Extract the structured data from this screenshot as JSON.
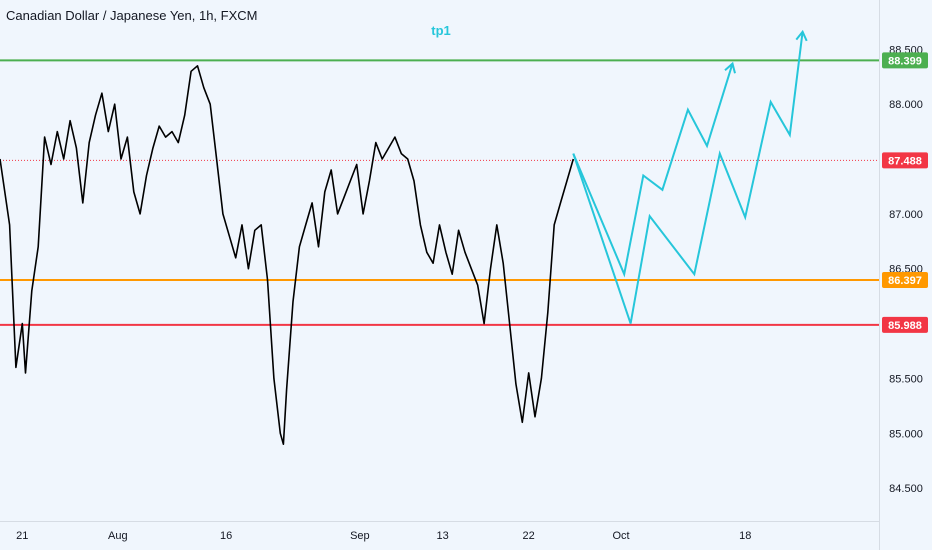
{
  "chart_title": "Canadian Dollar / Japanese Yen, 1h, FXCM",
  "annotation": {
    "text": "tp1",
    "color": "#26c6da"
  },
  "colors": {
    "background": "#f0f6fd",
    "candles": "#000000",
    "projection": "#26c6da",
    "resistance": "#4caf50",
    "support_upper": "#ff9800",
    "support_lower": "#f23645",
    "current_price": "#f23645"
  },
  "chart_data": {
    "type": "line",
    "title": "Canadian Dollar / Japanese Yen, 1h, FXCM",
    "symbol": "CADJPY",
    "interval": "1h",
    "source": "FXCM",
    "ylim": [
      84.2,
      88.95
    ],
    "y_ticks": [
      "88.500",
      "88.000",
      "87.500",
      "87.000",
      "86.500",
      "86.000",
      "85.500",
      "85.000",
      "84.500"
    ],
    "y_tick_values": [
      88.5,
      88.0,
      87.5,
      87.0,
      86.5,
      86.0,
      85.5,
      85.0,
      84.5
    ],
    "x_ticks": [
      "21",
      "Aug",
      "16",
      "Sep",
      "13",
      "22",
      "Oct",
      "18"
    ],
    "x_tick_index": [
      3.5,
      18.5,
      35.5,
      56.5,
      69.5,
      83,
      97.5,
      117
    ],
    "x_count": 139,
    "grid": false,
    "horizontal_levels": [
      {
        "name": "resistance",
        "value": 88.399,
        "label": "88.399",
        "color": "#4caf50"
      },
      {
        "name": "current",
        "value": 87.488,
        "label": "87.488",
        "color": "#f23645",
        "dotted": true
      },
      {
        "name": "support-upper",
        "value": 86.397,
        "label": "86.397",
        "color": "#ff9800"
      },
      {
        "name": "support-lower",
        "value": 85.988,
        "label": "85.988",
        "color": "#f23645"
      }
    ],
    "price_path": [
      [
        0,
        87.5
      ],
      [
        1.5,
        86.9
      ],
      [
        2.5,
        85.6
      ],
      [
        3.5,
        86.0
      ],
      [
        4,
        85.55
      ],
      [
        5,
        86.3
      ],
      [
        6,
        86.7
      ],
      [
        7,
        87.7
      ],
      [
        8,
        87.45
      ],
      [
        9,
        87.75
      ],
      [
        10,
        87.5
      ],
      [
        11,
        87.85
      ],
      [
        12,
        87.6
      ],
      [
        13,
        87.1
      ],
      [
        14,
        87.65
      ],
      [
        15,
        87.9
      ],
      [
        16,
        88.1
      ],
      [
        17,
        87.75
      ],
      [
        18,
        88.0
      ],
      [
        19,
        87.5
      ],
      [
        20,
        87.7
      ],
      [
        21,
        87.2
      ],
      [
        22,
        87.0
      ],
      [
        23,
        87.35
      ],
      [
        24,
        87.6
      ],
      [
        25,
        87.8
      ],
      [
        26,
        87.7
      ],
      [
        27,
        87.75
      ],
      [
        28,
        87.65
      ],
      [
        29,
        87.9
      ],
      [
        30,
        88.3
      ],
      [
        31,
        88.35
      ],
      [
        32,
        88.15
      ],
      [
        33,
        88.0
      ],
      [
        34,
        87.5
      ],
      [
        35,
        87.0
      ],
      [
        36,
        86.8
      ],
      [
        37,
        86.6
      ],
      [
        38,
        86.9
      ],
      [
        39,
        86.5
      ],
      [
        40,
        86.85
      ],
      [
        41,
        86.9
      ],
      [
        42,
        86.4
      ],
      [
        43,
        85.5
      ],
      [
        44,
        85.0
      ],
      [
        44.5,
        84.9
      ],
      [
        45,
        85.4
      ],
      [
        46,
        86.2
      ],
      [
        47,
        86.7
      ],
      [
        48,
        86.9
      ],
      [
        49,
        87.1
      ],
      [
        50,
        86.7
      ],
      [
        51,
        87.2
      ],
      [
        52,
        87.4
      ],
      [
        53,
        87.0
      ],
      [
        54,
        87.15
      ],
      [
        55,
        87.3
      ],
      [
        56,
        87.45
      ],
      [
        57,
        87.0
      ],
      [
        58,
        87.3
      ],
      [
        59,
        87.65
      ],
      [
        60,
        87.5
      ],
      [
        61,
        87.6
      ],
      [
        62,
        87.7
      ],
      [
        63,
        87.55
      ],
      [
        64,
        87.5
      ],
      [
        65,
        87.3
      ],
      [
        66,
        86.9
      ],
      [
        67,
        86.65
      ],
      [
        68,
        86.55
      ],
      [
        69,
        86.9
      ],
      [
        70,
        86.65
      ],
      [
        71,
        86.45
      ],
      [
        72,
        86.85
      ],
      [
        73,
        86.65
      ],
      [
        74,
        86.5
      ],
      [
        75,
        86.35
      ],
      [
        76,
        86.0
      ],
      [
        77,
        86.5
      ],
      [
        78,
        86.9
      ],
      [
        79,
        86.55
      ],
      [
        80,
        86.0
      ],
      [
        81,
        85.45
      ],
      [
        82,
        85.1
      ],
      [
        83,
        85.55
      ],
      [
        84,
        85.15
      ],
      [
        85,
        85.5
      ],
      [
        86,
        86.1
      ],
      [
        87,
        86.9
      ],
      [
        88,
        87.1
      ],
      [
        89,
        87.3
      ],
      [
        90,
        87.5
      ]
    ],
    "projection_paths": [
      [
        [
          90,
          87.55
        ],
        [
          98,
          86.45
        ],
        [
          101,
          87.35
        ],
        [
          104,
          87.22
        ],
        [
          108,
          87.95
        ],
        [
          111,
          87.62
        ],
        [
          115,
          88.37
        ]
      ],
      [
        [
          90,
          87.55
        ],
        [
          99,
          86.0
        ],
        [
          102,
          86.98
        ],
        [
          109,
          86.45
        ],
        [
          113,
          87.55
        ],
        [
          117,
          86.97
        ],
        [
          121,
          88.02
        ],
        [
          124,
          87.72
        ],
        [
          126,
          88.66
        ]
      ]
    ]
  }
}
